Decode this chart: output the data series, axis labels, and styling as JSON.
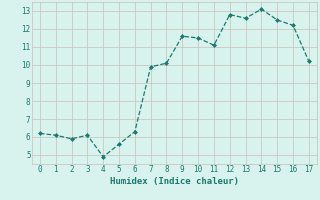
{
  "x": [
    0,
    1,
    2,
    3,
    4,
    5,
    6,
    7,
    8,
    9,
    10,
    11,
    12,
    13,
    14,
    15,
    16,
    17
  ],
  "y": [
    6.2,
    6.1,
    5.9,
    6.1,
    4.9,
    5.6,
    6.3,
    9.9,
    10.1,
    11.6,
    11.5,
    11.1,
    12.8,
    12.6,
    13.1,
    12.5,
    12.2,
    10.2
  ],
  "xlabel": "Humidex (Indice chaleur)",
  "xlim": [
    -0.5,
    17.5
  ],
  "ylim": [
    4.5,
    13.5
  ],
  "yticks": [
    5,
    6,
    7,
    8,
    9,
    10,
    11,
    12,
    13
  ],
  "xticks": [
    0,
    1,
    2,
    3,
    4,
    5,
    6,
    7,
    8,
    9,
    10,
    11,
    12,
    13,
    14,
    15,
    16,
    17
  ],
  "line_color": "#1a7a6e",
  "bg_color": "#d8f2ee",
  "grid_color": "#c8c0b8"
}
